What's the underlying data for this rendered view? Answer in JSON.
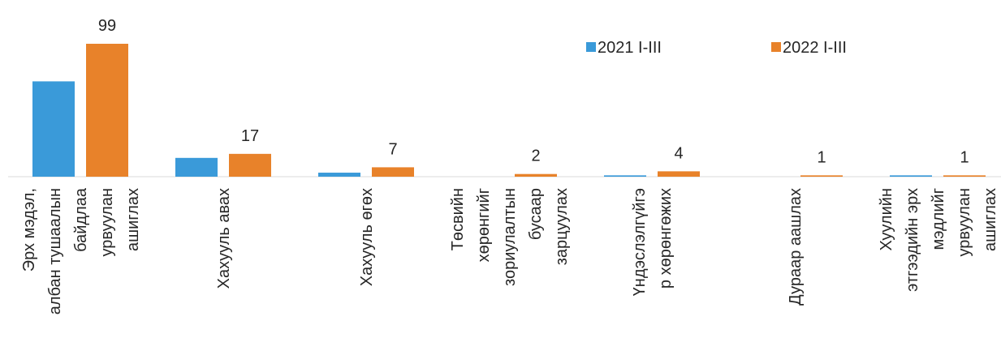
{
  "chart_data": {
    "type": "bar",
    "categories": [
      [
        "Эрх мэдэл,",
        "албан тушаалын",
        "байдлаа",
        "урвуулан",
        "ашиглах"
      ],
      [
        "Хахууль авах"
      ],
      [
        "Хахууль өгөх"
      ],
      [
        "Төсвийн",
        "хөрөнгийг",
        "зориулалтын",
        "бусаар",
        "зарцуулах"
      ],
      [
        "Үндэслэлгүйгэ",
        "р хөрөнгөжих"
      ],
      [
        "Дураар аашлах"
      ],
      [
        "Хуулийн",
        "этгээдийн эрх",
        "мэдлийг",
        "урвуулан",
        "ашиглах"
      ]
    ],
    "series": [
      {
        "name": "2021 I-III",
        "color": "#3a9ad9",
        "values": [
          71,
          14,
          3,
          0,
          1,
          0,
          1
        ]
      },
      {
        "name": "2022 I-III",
        "color": "#e8822a",
        "values": [
          99,
          17,
          7,
          2,
          4,
          1,
          1
        ],
        "show_labels": true
      }
    ],
    "legend": "top-right"
  }
}
